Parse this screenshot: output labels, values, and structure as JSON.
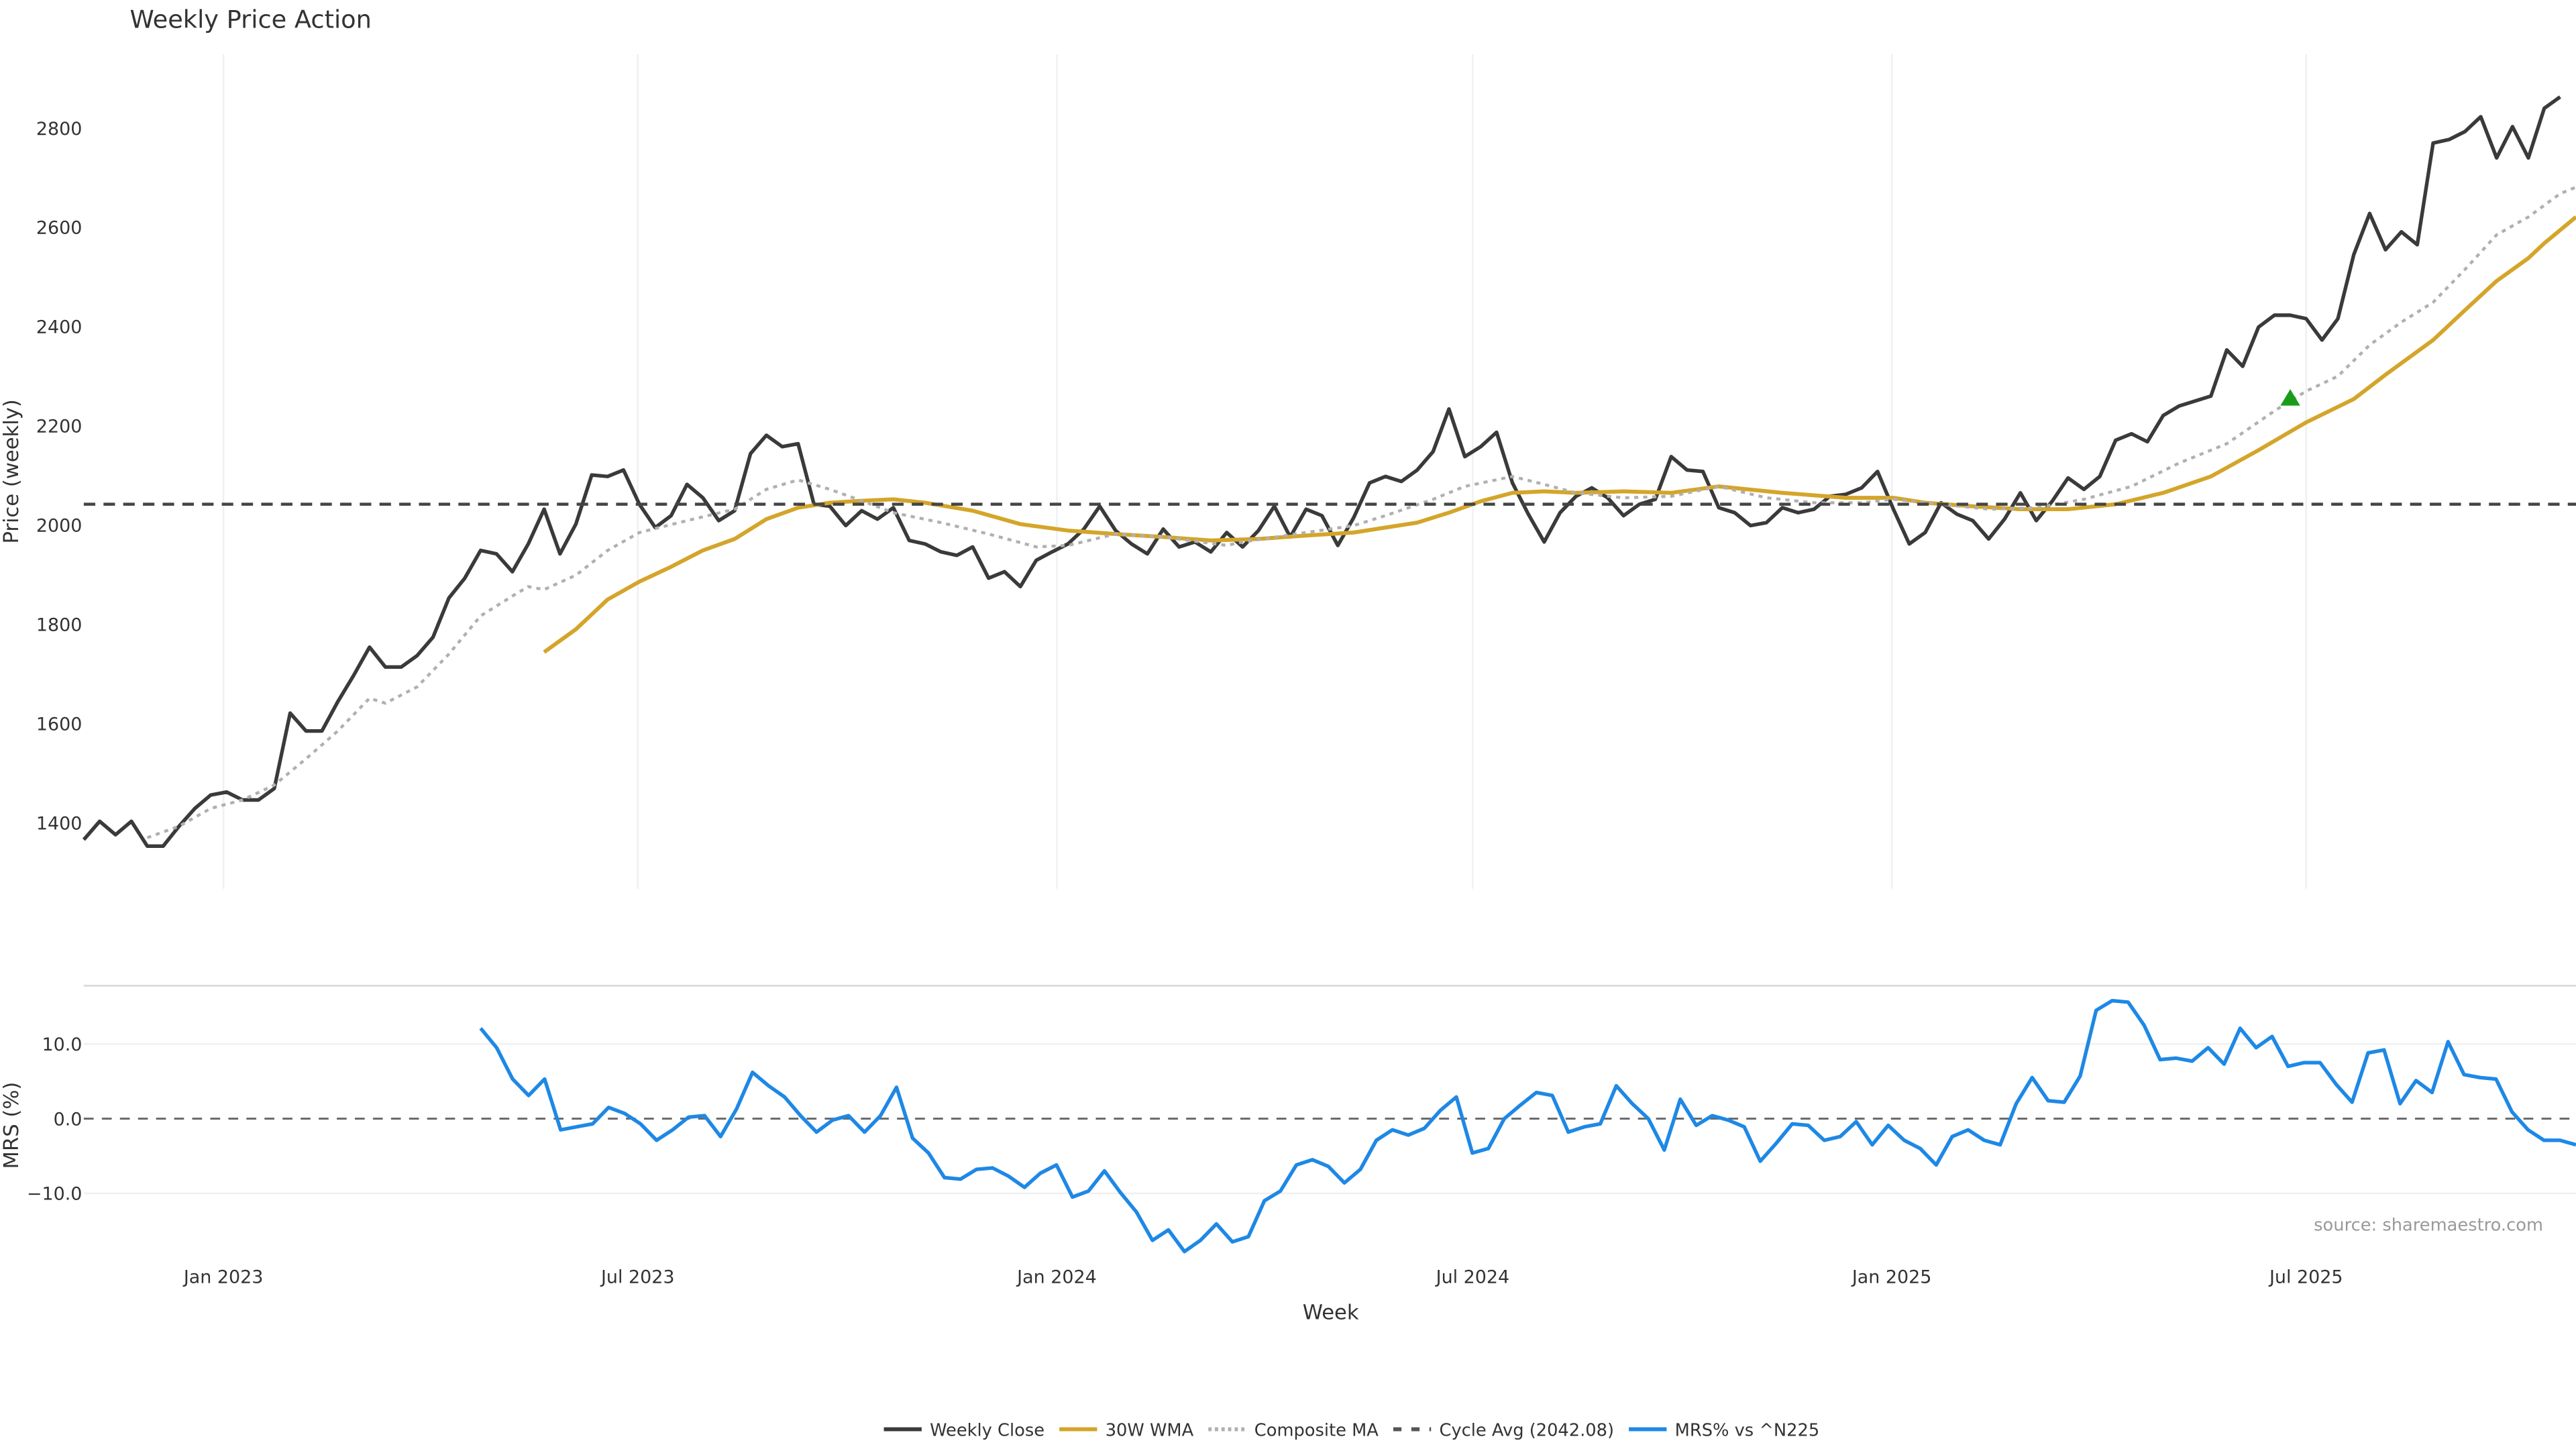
{
  "chart_data": [
    {
      "type": "line",
      "title": "Weekly Price Action",
      "xlabel": "",
      "ylabel": "Price (weekly)",
      "x_unit": "week index",
      "xlim": [
        0,
        157
      ],
      "ylim": [
        1267,
        2949
      ],
      "yticks": [
        1400,
        1600,
        1800,
        2000,
        2200,
        2400,
        2600,
        2800
      ],
      "xticks": [
        {
          "label": "Jan 2023",
          "week": 8.8
        },
        {
          "label": "Jul 2023",
          "week": 34.9
        },
        {
          "label": "Jan 2024",
          "week": 61.3
        },
        {
          "label": "Jul 2024",
          "week": 87.5
        },
        {
          "label": "Jan 2025",
          "week": 113.9
        },
        {
          "label": "Jul 2025",
          "week": 140.0
        }
      ],
      "grid": "vertical",
      "series": [
        {
          "name": "Weekly Close",
          "color": "#3a3a3a",
          "style": "solid",
          "start_week": 0,
          "values": [
            1366,
            1403,
            1376,
            1403,
            1353,
            1353,
            1393,
            1429,
            1456,
            1462,
            1446,
            1446,
            1469,
            1621,
            1585,
            1585,
            1644,
            1697,
            1754,
            1714,
            1714,
            1737,
            1774,
            1853,
            1893,
            1949,
            1942,
            1906,
            1962,
            2032,
            1942,
            2002,
            2101,
            2098,
            2111,
            2042,
            1995,
            2019,
            2082,
            2055,
            2009,
            2029,
            2144,
            2181,
            2158,
            2164,
            2042,
            2038,
            1999,
            2029,
            2012,
            2035,
            1969,
            1962,
            1946,
            1939,
            1956,
            1893,
            1906,
            1876,
            1929,
            1946,
            1962,
            1992,
            2038,
            1989,
            1962,
            1942,
            1992,
            1956,
            1966,
            1946,
            1985,
            1956,
            1989,
            2038,
            1976,
            2032,
            2019,
            1959,
            2015,
            2085,
            2098,
            2088,
            2111,
            2148,
            2234,
            2138,
            2158,
            2187,
            2085,
            2022,
            1966,
            2025,
            2058,
            2075,
            2055,
            2019,
            2042,
            2052,
            2138,
            2111,
            2108,
            2035,
            2025,
            1999,
            2005,
            2035,
            2025,
            2032,
            2058,
            2062,
            2075,
            2108,
            2032,
            1962,
            1985,
            2045,
            2022,
            2009,
            1972,
            2012,
            2065,
            2009,
            2048,
            2095,
            2072,
            2098,
            2171,
            2184,
            2168,
            2221,
            2240,
            2250,
            2260,
            2353,
            2320,
            2399,
            2423,
            2423,
            2416,
            2373,
            2416,
            2545,
            2628,
            2555,
            2591,
            2565,
            2770,
            2777,
            2793,
            2823,
            2740,
            2803,
            2740,
            2840,
            2863
          ]
        },
        {
          "name": "30W WMA",
          "color": "#d4a52a",
          "style": "solid",
          "points": [
            [
              29,
              1744
            ],
            [
              31,
              1790
            ],
            [
              33,
              1850
            ],
            [
              35,
              1886
            ],
            [
              37,
              1916
            ],
            [
              39,
              1949
            ],
            [
              41,
              1972
            ],
            [
              43,
              2012
            ],
            [
              45,
              2035
            ],
            [
              47,
              2045
            ],
            [
              49,
              2049
            ],
            [
              51,
              2052
            ],
            [
              53,
              2045
            ],
            [
              56,
              2029
            ],
            [
              59,
              2002
            ],
            [
              62,
              1989
            ],
            [
              65,
              1982
            ],
            [
              68,
              1976
            ],
            [
              71,
              1969
            ],
            [
              74,
              1972
            ],
            [
              77,
              1979
            ],
            [
              80,
              1985
            ],
            [
              84,
              2005
            ],
            [
              86,
              2025
            ],
            [
              88,
              2048
            ],
            [
              90,
              2065
            ],
            [
              92,
              2068
            ],
            [
              94,
              2065
            ],
            [
              97,
              2068
            ],
            [
              100,
              2065
            ],
            [
              103,
              2078
            ],
            [
              107,
              2065
            ],
            [
              111,
              2055
            ],
            [
              114,
              2055
            ],
            [
              116,
              2045
            ],
            [
              119,
              2038
            ],
            [
              122,
              2032
            ],
            [
              125,
              2032
            ],
            [
              128,
              2042
            ],
            [
              131,
              2065
            ],
            [
              134,
              2098
            ],
            [
              137,
              2151
            ],
            [
              140,
              2207
            ],
            [
              143,
              2254
            ],
            [
              145,
              2303
            ],
            [
              148,
              2373
            ],
            [
              150,
              2433
            ],
            [
              152,
              2492
            ],
            [
              154,
              2538
            ],
            [
              155,
              2568
            ],
            [
              157,
              2621
            ]
          ]
        },
        {
          "name": "Composite MA",
          "color": "#b0b0b0",
          "style": "dotted",
          "points": [
            [
              4,
              1370
            ],
            [
              6,
              1393
            ],
            [
              8,
              1429
            ],
            [
              10,
              1446
            ],
            [
              12,
              1476
            ],
            [
              14,
              1529
            ],
            [
              16,
              1585
            ],
            [
              18,
              1651
            ],
            [
              19,
              1641
            ],
            [
              21,
              1674
            ],
            [
              23,
              1740
            ],
            [
              25,
              1817
            ],
            [
              27,
              1857
            ],
            [
              28,
              1876
            ],
            [
              29,
              1870
            ],
            [
              31,
              1899
            ],
            [
              33,
              1949
            ],
            [
              35,
              1985
            ],
            [
              38,
              2009
            ],
            [
              41,
              2032
            ],
            [
              43,
              2072
            ],
            [
              45,
              2091
            ],
            [
              47,
              2072
            ],
            [
              49,
              2049
            ],
            [
              51,
              2025
            ],
            [
              54,
              2005
            ],
            [
              57,
              1982
            ],
            [
              60,
              1956
            ],
            [
              62,
              1959
            ],
            [
              65,
              1982
            ],
            [
              68,
              1976
            ],
            [
              72,
              1959
            ],
            [
              73,
              1966
            ],
            [
              77,
              1985
            ],
            [
              80,
              1999
            ],
            [
              82,
              2019
            ],
            [
              85,
              2052
            ],
            [
              87,
              2078
            ],
            [
              90,
              2098
            ],
            [
              92,
              2082
            ],
            [
              94,
              2065
            ],
            [
              97,
              2055
            ],
            [
              100,
              2058
            ],
            [
              103,
              2078
            ],
            [
              106,
              2055
            ],
            [
              109,
              2045
            ],
            [
              112,
              2045
            ],
            [
              114,
              2052
            ],
            [
              117,
              2042
            ],
            [
              120,
              2032
            ],
            [
              123,
              2035
            ],
            [
              126,
              2052
            ],
            [
              129,
              2078
            ],
            [
              132,
              2125
            ],
            [
              135,
              2164
            ],
            [
              138,
              2230
            ],
            [
              140,
              2270
            ],
            [
              142,
              2300
            ],
            [
              144,
              2363
            ],
            [
              146,
              2409
            ],
            [
              148,
              2449
            ],
            [
              150,
              2515
            ],
            [
              152,
              2585
            ],
            [
              154,
              2621
            ],
            [
              156,
              2668
            ],
            [
              157,
              2681
            ]
          ]
        },
        {
          "name": "Cycle Avg (2042.08)",
          "color": "#444444",
          "style": "dashed",
          "value": 2042.08
        }
      ],
      "markers": [
        {
          "type": "triangle-up",
          "color": "#1a9c1a",
          "week": 139,
          "value": 2254
        }
      ]
    },
    {
      "type": "line",
      "xlabel": "Week",
      "ylabel": "MRS (%)",
      "xlim": [
        0,
        157
      ],
      "ylim": [
        -18.5,
        17.8
      ],
      "yticks": [
        {
          "value": 10,
          "label": "10.0"
        },
        {
          "value": 0,
          "label": "0.0"
        },
        {
          "value": -10,
          "label": "−10.0"
        }
      ],
      "reference_line": {
        "value": 0,
        "style": "dashed"
      },
      "series": [
        {
          "name": "MRS% vs ^N225",
          "color": "#1e88e5",
          "style": "solid",
          "start_week": 25,
          "end_week": 157,
          "values": [
            12.1,
            9.5,
            5.3,
            3.1,
            5.3,
            -1.5,
            -1.1,
            -0.7,
            1.5,
            0.7,
            -0.7,
            -2.9,
            -1.5,
            0.2,
            0.4,
            -2.4,
            1.3,
            6.2,
            4.4,
            2.9,
            0.4,
            -1.8,
            -0.2,
            0.4,
            -1.8,
            0.4,
            4.2,
            -2.6,
            -4.6,
            -7.9,
            -8.1,
            -6.8,
            -6.6,
            -7.7,
            -9.2,
            -7.3,
            -6.2,
            -10.5,
            -9.7,
            -7.0,
            -9.9,
            -12.5,
            -16.3,
            -14.9,
            -17.8,
            -16.3,
            -14.1,
            -16.5,
            -15.8,
            -11.0,
            -9.7,
            -6.2,
            -5.5,
            -6.4,
            -8.6,
            -6.8,
            -2.9,
            -1.5,
            -2.2,
            -1.3,
            1.1,
            2.9,
            -4.6,
            -4.0,
            0,
            1.8,
            3.5,
            3.1,
            -1.8,
            -1.1,
            -0.7,
            4.4,
            2.0,
            0,
            -4.2,
            2.6,
            -0.9,
            0.4,
            -0.2,
            -1.1,
            -5.7,
            -3.3,
            -0.7,
            -0.9,
            -2.9,
            -2.4,
            -0.4,
            -3.5,
            -0.9,
            -2.9,
            -4.0,
            -6.2,
            -2.4,
            -1.5,
            -2.9,
            -3.5,
            2.0,
            5.5,
            2.4,
            2.2,
            5.7,
            14.5,
            15.8,
            15.6,
            12.5,
            7.9,
            8.1,
            7.7,
            9.5,
            7.3,
            12.1,
            9.5,
            11.0,
            7.0,
            7.5,
            7.5,
            4.6,
            2.2,
            8.8,
            9.2,
            2.0,
            5.1,
            3.5,
            10.3,
            5.9,
            5.5,
            5.3,
            0.9,
            -1.5,
            -2.9,
            -2.9,
            -3.5
          ]
        }
      ]
    }
  ],
  "legend": {
    "placement": "bottom-center",
    "items": [
      {
        "label": "Weekly Close",
        "color": "#3a3a3a",
        "style": "solid"
      },
      {
        "label": "30W WMA",
        "color": "#d4a52a",
        "style": "solid"
      },
      {
        "label": "Composite MA",
        "color": "#b0b0b0",
        "style": "dotted"
      },
      {
        "label": "Cycle Avg (2042.08)",
        "color": "#555555",
        "style": "dashed"
      },
      {
        "label": "MRS% vs ^N225",
        "color": "#1e88e5",
        "style": "solid"
      }
    ]
  },
  "source": "source: sharemaestro.com"
}
